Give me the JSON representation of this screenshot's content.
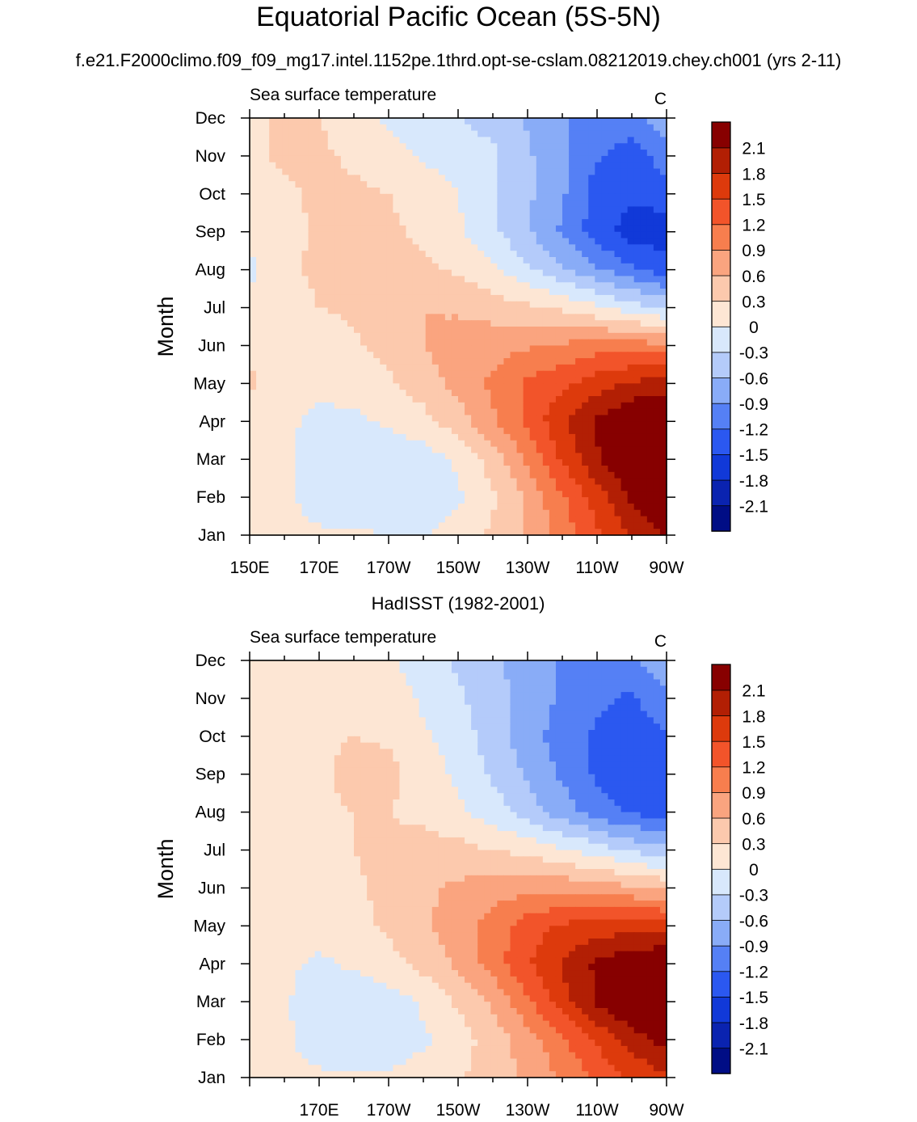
{
  "figure": {
    "title": "Equatorial Pacific Ocean (5S-5N)",
    "case_name": "f.e21.F2000climo.f09_f09_mg17.intel.1152pe.1thrd.opt-se-cslam.08212019.chey.ch001 (yrs 2-11)"
  },
  "colors": {
    "levels": [
      {
        "label": "-2.1",
        "color": "#000d85"
      },
      {
        "label": "-1.8",
        "color": "#0a23b0"
      },
      {
        "label": "-1.5",
        "color": "#1139d8"
      },
      {
        "label": "-1.2",
        "color": "#2b58f0"
      },
      {
        "label": "-0.9",
        "color": "#5580f5"
      },
      {
        "label": "-0.6",
        "color": "#89acf7"
      },
      {
        "label": "-0.3",
        "color": "#b4cbfa"
      },
      {
        "label": "0",
        "color": "#d8e8fc"
      },
      {
        "label": "0.3",
        "color": "#fde6d4"
      },
      {
        "label": "0.6",
        "color": "#fcc9ad"
      },
      {
        "label": "0.9",
        "color": "#faa47f"
      },
      {
        "label": "1.2",
        "color": "#f77e4e"
      },
      {
        "label": "1.5",
        "color": "#f2542a"
      },
      {
        "label": "1.8",
        "color": "#dd3a0c"
      },
      {
        "label": "2.1",
        "color": "#b21f04"
      },
      {
        "label": "",
        "color": "#870000"
      }
    ]
  },
  "chart_data": [
    {
      "type": "heatmap",
      "title": "",
      "left_label": "Sea surface temperature",
      "right_label": "C",
      "ylabel": "Month",
      "xlabel": "",
      "x_ticks": [
        "150E",
        "170E",
        "170W",
        "150W",
        "130W",
        "110W",
        "90W"
      ],
      "x_range": [
        150,
        270
      ],
      "y_ticks": [
        "Jan",
        "Feb",
        "Mar",
        "Apr",
        "May",
        "Jun",
        "Jul",
        "Aug",
        "Sep",
        "Oct",
        "Nov",
        "Dec"
      ],
      "colorbar_labels": [
        "2.1",
        "1.8",
        "1.5",
        "1.2",
        "0.9",
        "0.6",
        "0.3",
        "0",
        "-0.3",
        "-0.6",
        "-0.9",
        "-1.2",
        "-1.5",
        "-1.8",
        "-2.1"
      ],
      "lon": [
        150,
        160,
        170,
        180,
        190,
        200,
        210,
        220,
        230,
        240,
        250,
        260,
        270
      ],
      "values": [
        [
          0.1,
          0.0,
          -0.1,
          -0.1,
          -0.15,
          -0.15,
          -0.05,
          0.2,
          0.5,
          0.9,
          1.3,
          1.7,
          2.0
        ],
        [
          0.1,
          -0.1,
          -0.3,
          -0.4,
          -0.4,
          -0.35,
          -0.2,
          0.1,
          0.5,
          1.0,
          1.5,
          2.0,
          2.4
        ],
        [
          0.0,
          -0.1,
          -0.3,
          -0.4,
          -0.4,
          -0.3,
          -0.1,
          0.3,
          0.8,
          1.4,
          1.9,
          2.3,
          2.5
        ],
        [
          0.0,
          -0.1,
          -0.2,
          -0.2,
          -0.1,
          0.05,
          0.3,
          0.7,
          1.1,
          1.6,
          2.0,
          2.3,
          2.4
        ],
        [
          0.2,
          0.0,
          -0.1,
          -0.05,
          0.1,
          0.3,
          0.55,
          0.8,
          1.1,
          1.3,
          1.5,
          1.7,
          1.8
        ],
        [
          0.1,
          0.0,
          0.0,
          0.1,
          0.25,
          0.45,
          0.6,
          0.65,
          0.7,
          0.8,
          0.9,
          0.9,
          0.8
        ],
        [
          -0.1,
          0.05,
          0.15,
          0.2,
          0.4,
          0.45,
          0.4,
          0.3,
          0.2,
          0.1,
          -0.1,
          -0.3,
          -0.5
        ],
        [
          -0.2,
          0.1,
          0.2,
          0.2,
          0.3,
          0.2,
          0.1,
          -0.1,
          -0.4,
          -0.7,
          -1.0,
          -1.3,
          -1.5
        ],
        [
          -0.1,
          0.05,
          0.2,
          0.2,
          0.2,
          0.1,
          -0.1,
          -0.4,
          -0.7,
          -1.1,
          -1.5,
          -1.8,
          -1.8
        ],
        [
          0.05,
          0.1,
          0.2,
          0.2,
          0.15,
          0.05,
          -0.15,
          -0.4,
          -0.7,
          -1.0,
          -1.5,
          -1.6,
          -1.5
        ],
        [
          0.1,
          0.2,
          0.2,
          0.1,
          0.0,
          -0.2,
          -0.3,
          -0.4,
          -0.7,
          -1.0,
          -1.3,
          -1.5,
          -1.2
        ],
        [
          0.1,
          0.2,
          0.15,
          0.0,
          -0.2,
          -0.35,
          -0.45,
          -0.55,
          -0.8,
          -1.0,
          -1.2,
          -1.2,
          -0.8
        ]
      ]
    },
    {
      "type": "heatmap",
      "title": "HadISST (1982-2001)",
      "left_label": "Sea surface temperature",
      "right_label": "C",
      "ylabel": "Month",
      "xlabel": "",
      "x_ticks": [
        "",
        "170E",
        "170W",
        "150W",
        "130W",
        "110W",
        "90W"
      ],
      "x_range": [
        150,
        270
      ],
      "y_ticks": [
        "Jan",
        "Feb",
        "Mar",
        "Apr",
        "May",
        "Jun",
        "Jul",
        "Aug",
        "Sep",
        "Oct",
        "Nov",
        "Dec"
      ],
      "colorbar_labels": [
        "2.1",
        "1.8",
        "1.5",
        "1.2",
        "0.9",
        "0.6",
        "0.3",
        "0",
        "-0.3",
        "-0.6",
        "-0.9",
        "-1.2",
        "-1.5",
        "-1.8",
        "-2.1"
      ],
      "lon": [
        150,
        160,
        170,
        180,
        190,
        200,
        210,
        220,
        230,
        240,
        250,
        260,
        270
      ],
      "values": [
        [
          0.05,
          -0.05,
          -0.1,
          -0.1,
          -0.1,
          0.0,
          0.1,
          0.3,
          0.5,
          0.8,
          1.1,
          1.4,
          1.6
        ],
        [
          0.05,
          -0.1,
          -0.3,
          -0.4,
          -0.35,
          -0.2,
          0.0,
          0.3,
          0.6,
          1.0,
          1.4,
          1.8,
          2.1
        ],
        [
          0.0,
          -0.1,
          -0.35,
          -0.4,
          -0.3,
          -0.1,
          0.2,
          0.5,
          1.0,
          1.5,
          2.0,
          2.3,
          2.4
        ],
        [
          -0.1,
          -0.1,
          -0.2,
          -0.1,
          0.05,
          0.25,
          0.5,
          0.9,
          1.3,
          1.7,
          2.0,
          2.2,
          2.3
        ],
        [
          0.1,
          0.0,
          -0.05,
          0.05,
          0.2,
          0.4,
          0.6,
          0.9,
          1.2,
          1.4,
          1.5,
          1.5,
          1.5
        ],
        [
          0.1,
          0.05,
          0.05,
          0.1,
          0.25,
          0.4,
          0.5,
          0.6,
          0.65,
          0.65,
          0.6,
          0.5,
          0.4
        ],
        [
          0.0,
          0.05,
          0.1,
          0.15,
          0.2,
          0.3,
          0.25,
          0.15,
          0.05,
          -0.1,
          -0.3,
          -0.5,
          -0.7
        ],
        [
          -0.1,
          0.05,
          0.1,
          0.15,
          0.15,
          0.05,
          -0.1,
          -0.3,
          -0.6,
          -0.9,
          -1.2,
          -1.4,
          -1.5
        ],
        [
          -0.05,
          0.0,
          0.1,
          0.25,
          0.25,
          0.0,
          -0.2,
          -0.5,
          -0.8,
          -1.1,
          -1.4,
          -1.55,
          -1.5
        ],
        [
          0.0,
          0.05,
          0.1,
          0.15,
          0.1,
          -0.1,
          -0.3,
          -0.6,
          -0.9,
          -1.2,
          -1.4,
          -1.5,
          -1.4
        ],
        [
          0.05,
          0.1,
          0.1,
          0.1,
          0.0,
          -0.2,
          -0.4,
          -0.6,
          -0.9,
          -1.1,
          -1.3,
          -1.4,
          -1.1
        ],
        [
          0.05,
          0.1,
          0.1,
          0.05,
          -0.1,
          -0.3,
          -0.5,
          -0.7,
          -0.9,
          -1.1,
          -1.2,
          -1.1,
          -0.8
        ]
      ]
    }
  ]
}
